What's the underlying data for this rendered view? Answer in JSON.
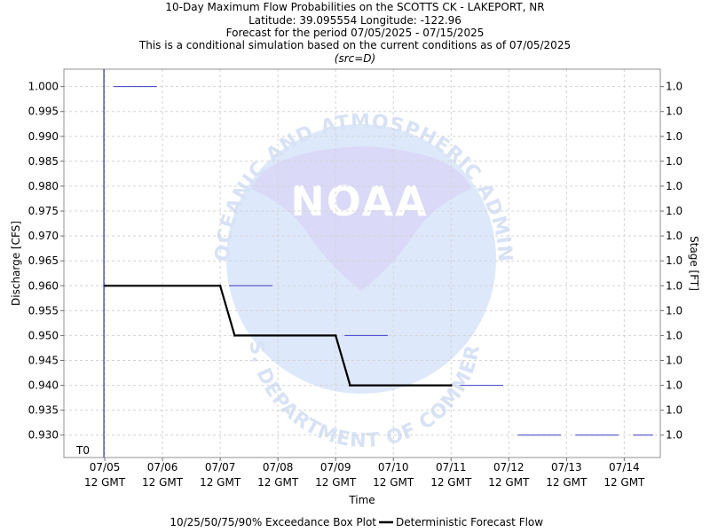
{
  "chart_data": {
    "type": "line",
    "title_lines": [
      "10-Day Maximum Flow Probabilities on the SCOTTS CK - LAKEPORT, NR",
      "Latitude: 39.095554 Longitude: -122.96",
      "Forecast for the period 07/05/2025 - 07/15/2025",
      "This is a conditional simulation based on the current conditions as of 07/05/2025"
    ],
    "subtitle": "(src=D)",
    "xlabel": "Time",
    "ylabel_left": "Discharge [CFS]",
    "ylabel_right": "Stage [FT]",
    "ylim": [
      0.9255,
      1.0035
    ],
    "xlim": [
      "07/04 19 GMT",
      "07/15 03 GMT"
    ],
    "grid": true,
    "x_ticks": [
      {
        "date": "07/05",
        "time": "12 GMT"
      },
      {
        "date": "07/06",
        "time": "12 GMT"
      },
      {
        "date": "07/07",
        "time": "12 GMT"
      },
      {
        "date": "07/08",
        "time": "12 GMT"
      },
      {
        "date": "07/09",
        "time": "12 GMT"
      },
      {
        "date": "07/10",
        "time": "12 GMT"
      },
      {
        "date": "07/11",
        "time": "12 GMT"
      },
      {
        "date": "07/12",
        "time": "12 GMT"
      },
      {
        "date": "07/13",
        "time": "12 GMT"
      },
      {
        "date": "07/14",
        "time": "12 GMT"
      }
    ],
    "y_ticks": [
      "1.000",
      "0.995",
      "0.990",
      "0.985",
      "0.980",
      "0.975",
      "0.970",
      "0.965",
      "0.960",
      "0.955",
      "0.950",
      "0.945",
      "0.940",
      "0.935",
      "0.930"
    ],
    "y_right_ticks": [
      "1.0",
      "1.0",
      "1.0",
      "1.0",
      "1.0",
      "1.0",
      "1.0",
      "1.0",
      "1.0",
      "1.0",
      "1.0",
      "1.0",
      "1.0",
      "1.0",
      "1.0"
    ],
    "t0_label": "T0",
    "t0_time": "07/05 12 GMT",
    "series": [
      {
        "name": "Deterministic Forecast Flow",
        "color": "#000000",
        "points": [
          {
            "x": "07/05 12 GMT",
            "y": 0.96
          },
          {
            "x": "07/07 12 GMT",
            "y": 0.96
          },
          {
            "x": "07/07 18 GMT",
            "y": 0.95
          },
          {
            "x": "07/09 12 GMT",
            "y": 0.95
          },
          {
            "x": "07/09 18 GMT",
            "y": 0.94
          },
          {
            "x": "07/11 12 GMT",
            "y": 0.94
          }
        ]
      }
    ],
    "box_plots": [
      {
        "start": "07/05 12 GMT",
        "end": "07/06 06 GMT",
        "value": 1.0
      },
      {
        "start": "07/07 12 GMT",
        "end": "07/08 06 GMT",
        "value": 0.96
      },
      {
        "start": "07/09 12 GMT",
        "end": "07/10 06 GMT",
        "value": 0.95
      },
      {
        "start": "07/11 12 GMT",
        "end": "07/12 06 GMT",
        "value": 0.94
      },
      {
        "start": "07/12 12 GMT",
        "end": "07/13 06 GMT",
        "value": 0.93
      },
      {
        "start": "07/13 12 GMT",
        "end": "07/14 06 GMT",
        "value": 0.93
      },
      {
        "start": "07/14 12 GMT",
        "end": "07/15 06 GMT",
        "value": 0.93
      }
    ],
    "box_plot_color": "#3d3dc8",
    "legend": {
      "placement": "bottom-center",
      "box_label": "10/25/50/75/90% Exceedance Box Plot",
      "line_label": "Deterministic Forecast Flow"
    },
    "watermark": {
      "arc_text_top": "NATIONAL OCEANIC AND ATMOSPHERIC ADMINISTRATION",
      "arc_text_bottom": "U.S. DEPARTMENT OF COMMERCE",
      "center_text": "NOAA",
      "circle_color": "#dde8fb",
      "wing_color": "#dad9f7",
      "text_color": "#d8e2f6"
    }
  }
}
